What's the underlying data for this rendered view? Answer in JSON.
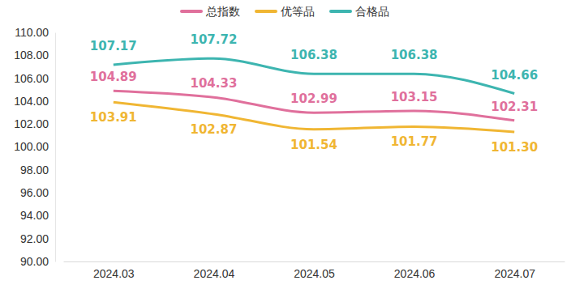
{
  "chart_data": {
    "type": "line",
    "categories": [
      "2024.03",
      "2024.04",
      "2024.05",
      "2024.06",
      "2024.07"
    ],
    "series": [
      {
        "name": "总指数",
        "color": "#e0709c",
        "values": [
          104.89,
          104.33,
          102.99,
          103.15,
          102.31
        ],
        "value_labels": [
          "104.89",
          "104.33",
          "102.99",
          "103.15",
          "102.31"
        ]
      },
      {
        "name": "优等品",
        "color": "#f0b633",
        "values": [
          103.91,
          102.87,
          101.54,
          101.77,
          101.3
        ],
        "value_labels": [
          "103.91",
          "102.87",
          "101.54",
          "101.77",
          "101.30"
        ]
      },
      {
        "name": "合格品",
        "color": "#3db5b0",
        "values": [
          107.17,
          107.72,
          106.38,
          106.38,
          104.66
        ],
        "value_labels": [
          "107.17",
          "107.72",
          "106.38",
          "106.38",
          "104.66"
        ]
      }
    ],
    "ylim": [
      90,
      110
    ],
    "yticks": [
      {
        "value": 90,
        "label": "90.00"
      },
      {
        "value": 92,
        "label": "92.00"
      },
      {
        "value": 94,
        "label": "94.00"
      },
      {
        "value": 96,
        "label": "96.00"
      },
      {
        "value": 98,
        "label": "98.00"
      },
      {
        "value": 100,
        "label": "100.00"
      },
      {
        "value": 102,
        "label": "102.00"
      },
      {
        "value": 104,
        "label": "104.00"
      },
      {
        "value": 106,
        "label": "106.00"
      },
      {
        "value": 108,
        "label": "108.00"
      },
      {
        "value": 110,
        "label": "110.00"
      }
    ],
    "grid": false,
    "legend": "top",
    "data_labels": true,
    "line_style": "solid"
  }
}
